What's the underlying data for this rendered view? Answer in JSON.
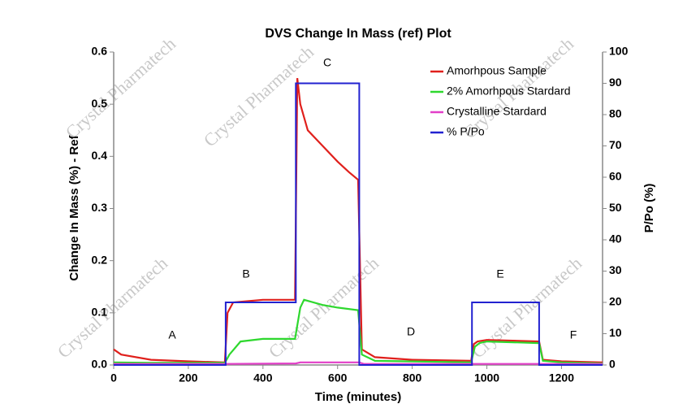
{
  "chart_data": {
    "type": "line",
    "title": "DVS Change In Mass (ref) Plot",
    "x_label": "Time (minutes)",
    "y_label": "Change In Mass (%) - Ref",
    "y2_label": "P/Po (%)",
    "watermark": "Crystal Pharmatech",
    "annotations": [
      "A",
      "B",
      "C",
      "D",
      "E",
      "F"
    ],
    "xlim": [
      0,
      1310
    ],
    "xticks": [
      0,
      200,
      400,
      600,
      800,
      1000,
      1200
    ],
    "ylim": [
      0,
      0.6
    ],
    "yticks": [
      {
        "value": 0,
        "label": "0.0"
      },
      0.1,
      0.2,
      0.3,
      0.4,
      0.5,
      0.6
    ],
    "y2lim": [
      0,
      100
    ],
    "y2ticks": [
      0,
      10,
      20,
      30,
      40,
      50,
      60,
      70,
      80,
      90,
      100
    ],
    "legend": "top-right",
    "series": [
      {
        "name": "Amorhpous Sample",
        "color": "#e0201c",
        "x": [
          0,
          20,
          100,
          200,
          298,
          305,
          320,
          400,
          486,
          492,
          500,
          520,
          560,
          600,
          630,
          655,
          665,
          700,
          800,
          958,
          965,
          975,
          1000,
          1140,
          1150,
          1200,
          1310
        ],
        "values": [
          0.03,
          0.02,
          0.01,
          0.007,
          0.005,
          0.1,
          0.12,
          0.125,
          0.125,
          0.55,
          0.5,
          0.45,
          0.42,
          0.39,
          0.37,
          0.355,
          0.03,
          0.015,
          0.01,
          0.008,
          0.04,
          0.045,
          0.048,
          0.045,
          0.01,
          0.007,
          0.005
        ]
      },
      {
        "name": "2% Amorhpous Stardard",
        "color": "#2ed82e",
        "x": [
          0,
          100,
          298,
          310,
          340,
          400,
          486,
          500,
          510,
          560,
          600,
          655,
          665,
          700,
          958,
          968,
          980,
          1000,
          1140,
          1150,
          1200,
          1310
        ],
        "values": [
          0.005,
          0.004,
          0.004,
          0.02,
          0.045,
          0.05,
          0.05,
          0.11,
          0.125,
          0.115,
          0.11,
          0.105,
          0.02,
          0.008,
          0.005,
          0.035,
          0.042,
          0.045,
          0.042,
          0.008,
          0.005,
          0.003
        ]
      },
      {
        "name": "Crystalline Stardard",
        "color": "#e23fc8",
        "x": [
          0,
          300,
          488,
          500,
          658,
          670,
          1310
        ],
        "values": [
          0.002,
          0.002,
          0.003,
          0.005,
          0.005,
          0.002,
          0.002
        ]
      },
      {
        "name": "% P/Po",
        "color": "#2222d0",
        "axis": "y2",
        "x": [
          0,
          300,
          300,
          488,
          488,
          658,
          658,
          960,
          960,
          1140,
          1140,
          1310
        ],
        "values": [
          0,
          0,
          20,
          20,
          90,
          90,
          0,
          0,
          20,
          20,
          0,
          0
        ]
      }
    ]
  }
}
